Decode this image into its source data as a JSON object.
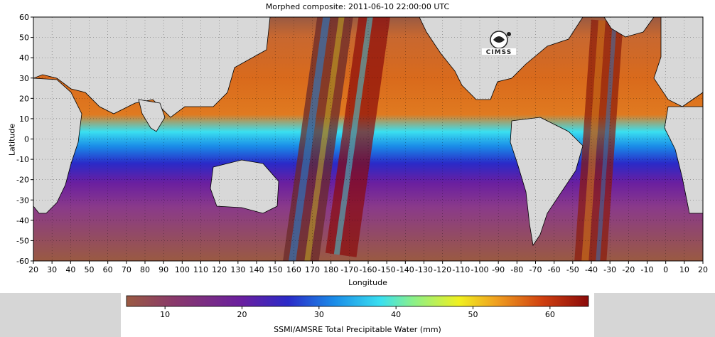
{
  "figure": {
    "title": "Morphed composite: 2011-06-10 22:00:00 UTC",
    "xlabel": "Longitude",
    "ylabel": "Latitude",
    "x_ticks": [
      "20",
      "30",
      "40",
      "50",
      "60",
      "70",
      "80",
      "90",
      "100",
      "110",
      "120",
      "130",
      "140",
      "150",
      "160",
      "170",
      "180",
      "-170",
      "-160",
      "-150",
      "-140",
      "-130",
      "-120",
      "-110",
      "-100",
      "-90",
      "-80",
      "-70",
      "-60",
      "-50",
      "-40",
      "-30",
      "-20",
      "-10",
      "0",
      "10",
      "20"
    ],
    "y_ticks": [
      "60",
      "50",
      "40",
      "30",
      "20",
      "10",
      "0",
      "-10",
      "-20",
      "-30",
      "-40",
      "-50",
      "-60"
    ],
    "logo_text": "CIMSS"
  },
  "colorbar": {
    "label": "SSMI/AMSRE Total Precipitable Water (mm)",
    "ticks": [
      "10",
      "20",
      "30",
      "40",
      "50",
      "60"
    ],
    "tick_values": [
      10,
      20,
      30,
      40,
      50,
      60
    ],
    "range": [
      5,
      65
    ],
    "colors": [
      "#9a5a42",
      "#8a3a8a",
      "#6a1fa0",
      "#2a2ac8",
      "#1a8ce8",
      "#3ae0f0",
      "#8af08a",
      "#f0f020",
      "#f0a020",
      "#d04010",
      "#8a0a0a"
    ]
  },
  "map": {
    "land_color": "#d8d8d8",
    "ocean_dry_color": "#9a5a42",
    "ocean_moist_color": "#d96a1c"
  }
}
